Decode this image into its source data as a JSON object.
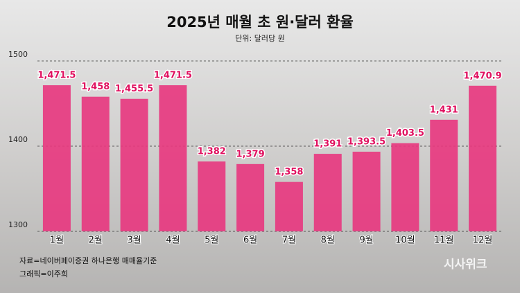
{
  "chart_data": {
    "type": "bar",
    "title": "2025년 매월 초 원·달러 환율",
    "subtitle": "단위: 달러당 원",
    "categories": [
      "1월",
      "2월",
      "3월",
      "4월",
      "5월",
      "6월",
      "7월",
      "8월",
      "9월",
      "10월",
      "11월",
      "12월"
    ],
    "values": [
      1471.5,
      1458,
      1455.5,
      1471.5,
      1382,
      1379,
      1358,
      1391,
      1393.5,
      1403.5,
      1431,
      1470.9
    ],
    "value_labels": [
      "1,471.5",
      "1,458",
      "1,455.5",
      "1,471.5",
      "1,382",
      "1,379",
      "1,358",
      "1,391",
      "1,393.5",
      "1,403.5",
      "1,431",
      "1,470.9"
    ],
    "color": "#e8367e",
    "ylim": [
      1300,
      1500
    ],
    "yticks": [
      1300,
      1400,
      1500
    ],
    "grid": true,
    "source": "자료=네이버페이증권 하나은행 매매율기준",
    "credit": "그래픽=이주희",
    "watermark": "시사위크"
  }
}
